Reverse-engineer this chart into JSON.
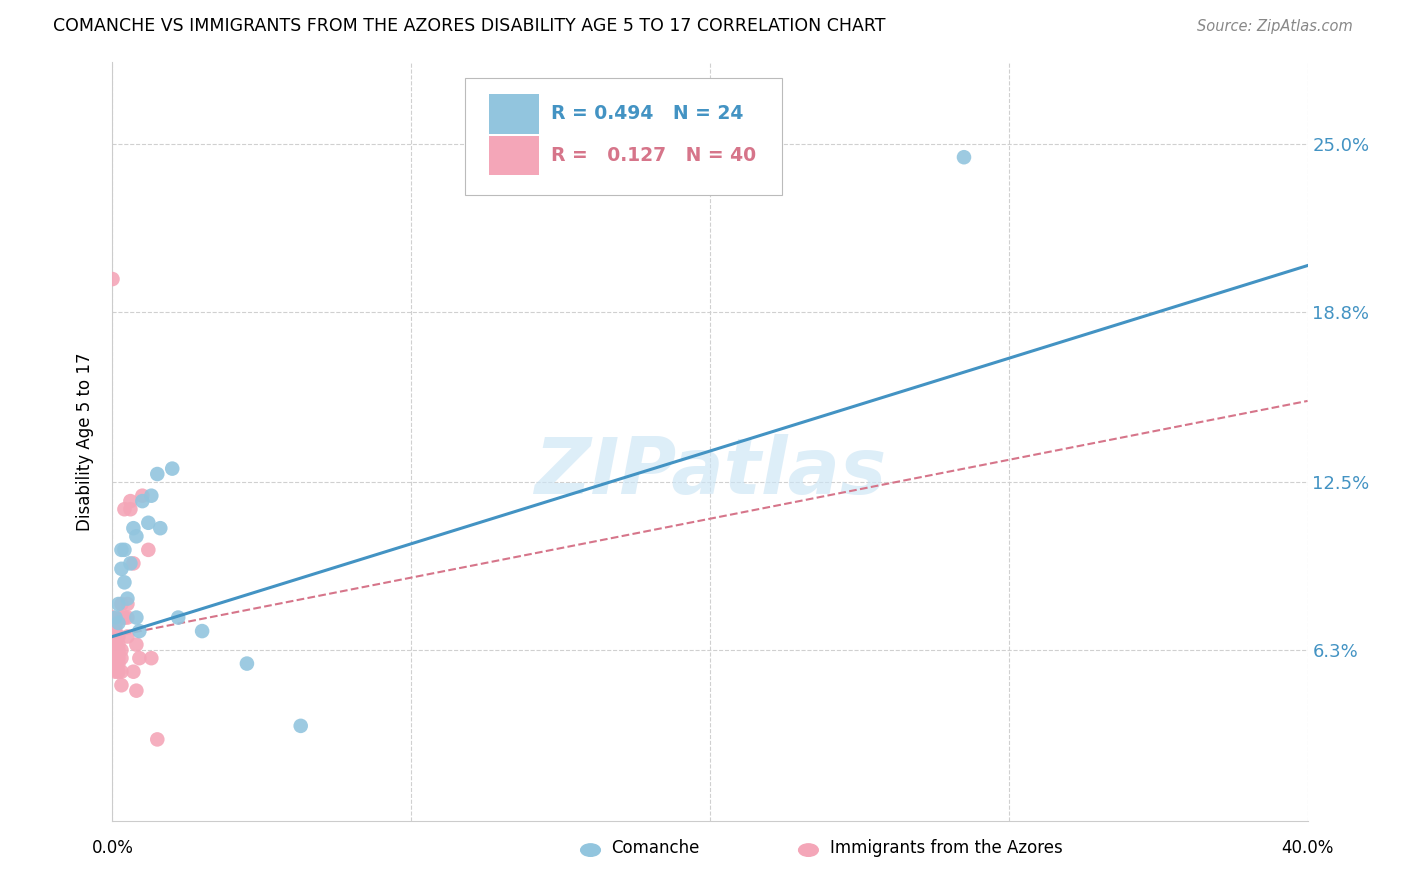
{
  "title": "COMANCHE VS IMMIGRANTS FROM THE AZORES DISABILITY AGE 5 TO 17 CORRELATION CHART",
  "source": "Source: ZipAtlas.com",
  "ylabel": "Disability Age 5 to 17",
  "xlim": [
    0.0,
    0.4
  ],
  "ylim": [
    0.0,
    0.28
  ],
  "yticks": [
    0.063,
    0.125,
    0.188,
    0.25
  ],
  "ytick_labels": [
    "6.3%",
    "12.5%",
    "18.8%",
    "25.0%"
  ],
  "xtick_positions": [
    0.0,
    0.1,
    0.2,
    0.3,
    0.4
  ],
  "legend_blue_r": "0.494",
  "legend_blue_n": "24",
  "legend_pink_r": "0.127",
  "legend_pink_n": "40",
  "blue_color": "#92c5de",
  "pink_color": "#f4a6b8",
  "blue_line_color": "#4393c3",
  "pink_line_color": "#d6758a",
  "watermark": "ZIPatlas",
  "blue_line_x": [
    0.0,
    0.4
  ],
  "blue_line_y": [
    0.068,
    0.205
  ],
  "pink_line_x": [
    0.0,
    0.4
  ],
  "pink_line_y": [
    0.068,
    0.155
  ],
  "blue_scatter_x": [
    0.001,
    0.002,
    0.002,
    0.003,
    0.003,
    0.004,
    0.004,
    0.005,
    0.006,
    0.007,
    0.008,
    0.008,
    0.009,
    0.01,
    0.012,
    0.013,
    0.015,
    0.016,
    0.02,
    0.022,
    0.03,
    0.045,
    0.063,
    0.285
  ],
  "blue_scatter_y": [
    0.075,
    0.08,
    0.073,
    0.093,
    0.1,
    0.088,
    0.1,
    0.082,
    0.095,
    0.108,
    0.105,
    0.075,
    0.07,
    0.118,
    0.11,
    0.12,
    0.128,
    0.108,
    0.13,
    0.075,
    0.07,
    0.058,
    0.035,
    0.245
  ],
  "pink_scatter_x": [
    0.0,
    0.0,
    0.001,
    0.001,
    0.001,
    0.001,
    0.001,
    0.001,
    0.001,
    0.001,
    0.001,
    0.002,
    0.002,
    0.002,
    0.002,
    0.002,
    0.002,
    0.003,
    0.003,
    0.003,
    0.003,
    0.003,
    0.003,
    0.004,
    0.004,
    0.005,
    0.005,
    0.005,
    0.006,
    0.006,
    0.007,
    0.007,
    0.008,
    0.008,
    0.009,
    0.01,
    0.012,
    0.013,
    0.015,
    0.0
  ],
  "pink_scatter_y": [
    0.075,
    0.068,
    0.072,
    0.068,
    0.063,
    0.065,
    0.06,
    0.063,
    0.07,
    0.058,
    0.055,
    0.068,
    0.065,
    0.063,
    0.058,
    0.055,
    0.06,
    0.075,
    0.08,
    0.063,
    0.06,
    0.055,
    0.05,
    0.075,
    0.115,
    0.08,
    0.075,
    0.068,
    0.118,
    0.115,
    0.095,
    0.055,
    0.065,
    0.048,
    0.06,
    0.12,
    0.1,
    0.06,
    0.03,
    0.2
  ]
}
